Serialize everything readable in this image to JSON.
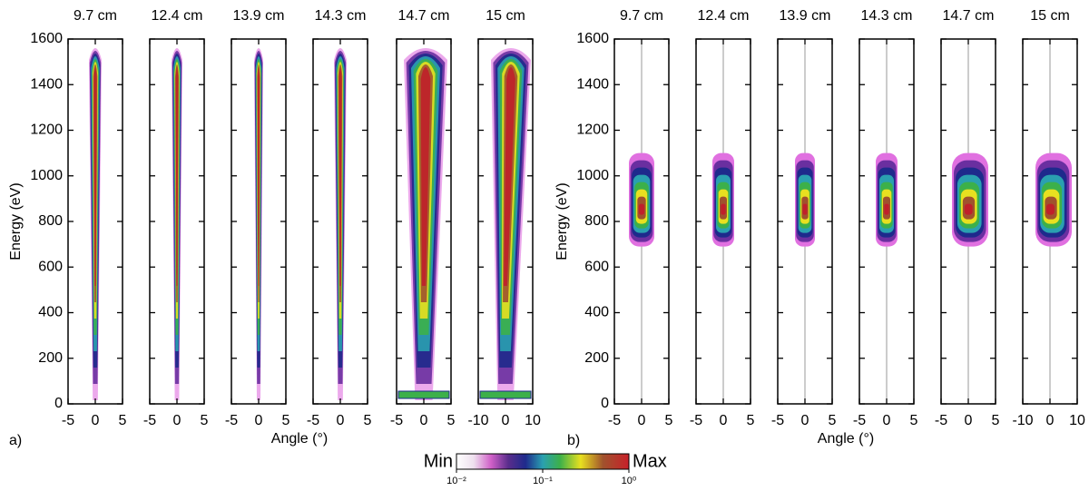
{
  "chart_data": [
    {
      "type": "heatmap",
      "label": "a)",
      "ylabel": "Energy (eV)",
      "xlabel": "Angle (°)",
      "ylim": [
        0,
        1600
      ],
      "yticks": [
        0,
        200,
        400,
        600,
        800,
        1000,
        1200,
        1400,
        1600
      ],
      "panels": [
        {
          "title": "9.7 cm",
          "xlim": [
            -5,
            5
          ],
          "xticks": [
            -5,
            0,
            5
          ]
        },
        {
          "title": "12.4 cm",
          "xlim": [
            -5,
            5
          ],
          "xticks": [
            -5,
            0,
            5
          ]
        },
        {
          "title": "13.9 cm",
          "xlim": [
            -5,
            5
          ],
          "xticks": [
            -5,
            0,
            5
          ]
        },
        {
          "title": "14.3 cm",
          "xlim": [
            -5,
            5
          ],
          "xticks": [
            -5,
            0,
            5
          ]
        },
        {
          "title": "14.7 cm",
          "xlim": [
            -5,
            5
          ],
          "xticks": [
            -5,
            0,
            5
          ]
        },
        {
          "title": "15 cm",
          "xlim": [
            -10,
            10
          ],
          "xticks": [
            -10,
            0,
            10
          ]
        }
      ]
    },
    {
      "type": "heatmap",
      "label": "b)",
      "ylabel": "Energy (eV)",
      "xlabel": "Angle (°)",
      "ylim": [
        0,
        1600
      ],
      "yticks": [
        0,
        200,
        400,
        600,
        800,
        1000,
        1200,
        1400,
        1600
      ],
      "panels": [
        {
          "title": "9.7 cm",
          "xlim": [
            -5,
            5
          ],
          "xticks": [
            -5,
            0,
            5
          ]
        },
        {
          "title": "12.4 cm",
          "xlim": [
            -5,
            5
          ],
          "xticks": [
            -5,
            0,
            5
          ]
        },
        {
          "title": "13.9 cm",
          "xlim": [
            -5,
            5
          ],
          "xticks": [
            -5,
            0,
            5
          ]
        },
        {
          "title": "14.3 cm",
          "xlim": [
            -5,
            5
          ],
          "xticks": [
            -5,
            0,
            5
          ]
        },
        {
          "title": "14.7 cm",
          "xlim": [
            -5,
            5
          ],
          "xticks": [
            -5,
            0,
            5
          ]
        },
        {
          "title": "15 cm",
          "xlim": [
            -10,
            10
          ],
          "xticks": [
            -10,
            0,
            10
          ]
        }
      ]
    }
  ],
  "colorbar": {
    "min_label": "Min",
    "max_label": "Max",
    "log_scale": true,
    "lim": [
      0.01,
      1
    ],
    "ticks": [
      {
        "value": 0.01,
        "label": "10⁻²"
      },
      {
        "value": 0.1,
        "label": "10⁻¹"
      },
      {
        "value": 1,
        "label": "10⁰"
      }
    ]
  }
}
